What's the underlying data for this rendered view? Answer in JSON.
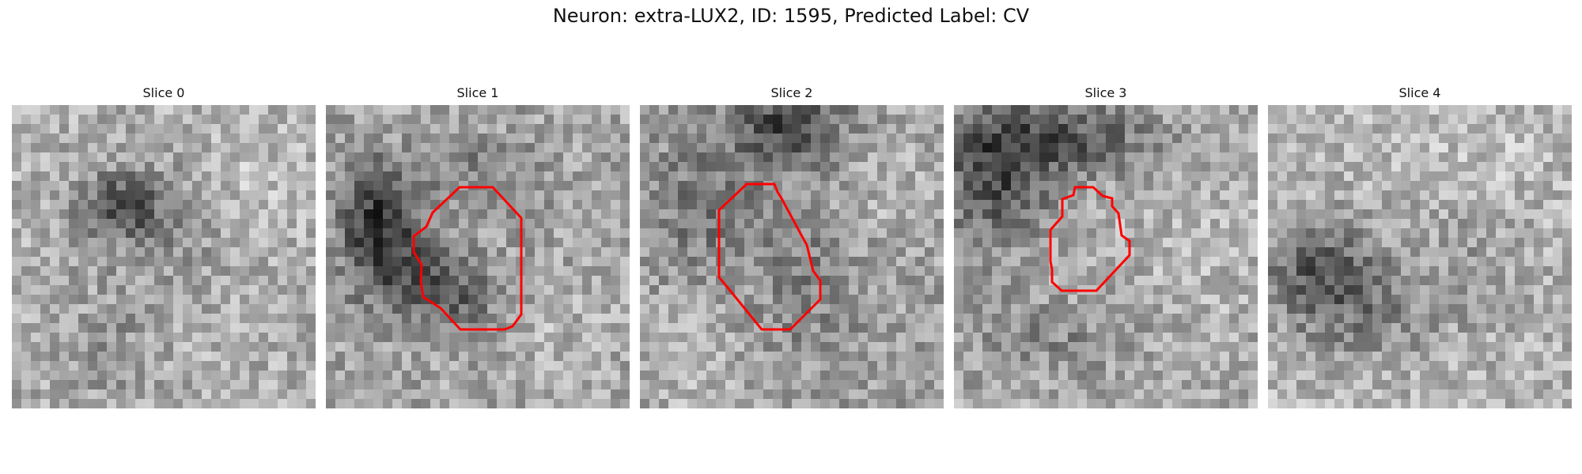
{
  "figure": {
    "title": "Neuron: extra-LUX2, ID: 1595, Predicted Label: CV",
    "contour_color": "#ff0000"
  },
  "panels": [
    {
      "title": "Slice 0",
      "has_contour": false
    },
    {
      "title": "Slice 1",
      "has_contour": true
    },
    {
      "title": "Slice 2",
      "has_contour": true
    },
    {
      "title": "Slice 3",
      "has_contour": true
    },
    {
      "title": "Slice 4",
      "has_contour": false
    }
  ]
}
